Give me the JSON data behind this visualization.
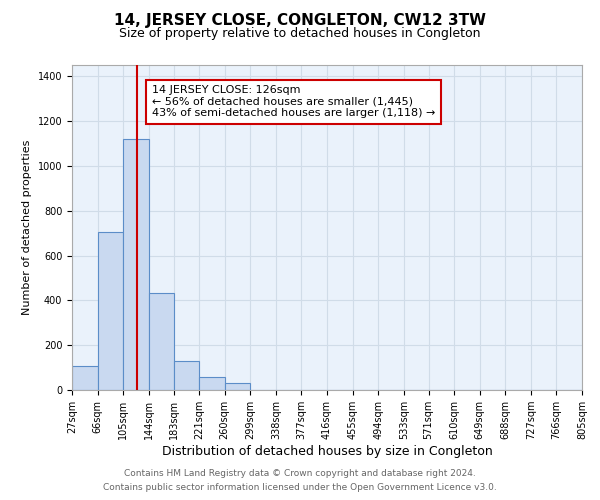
{
  "title": "14, JERSEY CLOSE, CONGLETON, CW12 3TW",
  "subtitle": "Size of property relative to detached houses in Congleton",
  "xlabel": "Distribution of detached houses by size in Congleton",
  "ylabel": "Number of detached properties",
  "bar_edges": [
    27,
    66,
    105,
    144,
    183,
    221,
    260,
    299,
    338,
    377,
    416,
    455,
    494,
    533,
    571,
    610,
    649,
    688,
    727,
    766,
    805
  ],
  "bar_heights": [
    107,
    703,
    1119,
    432,
    130,
    57,
    32,
    0,
    0,
    0,
    0,
    0,
    0,
    0,
    0,
    0,
    0,
    0,
    0,
    0
  ],
  "bar_color": "#c9d9f0",
  "bar_edge_color": "#5b8dc8",
  "property_line_x": 126,
  "property_line_color": "#cc0000",
  "annotation_text": "14 JERSEY CLOSE: 126sqm\n← 56% of detached houses are smaller (1,445)\n43% of semi-detached houses are larger (1,118) →",
  "annotation_box_color": "#ffffff",
  "annotation_box_edge_color": "#cc0000",
  "ylim": [
    0,
    1450
  ],
  "yticks": [
    0,
    200,
    400,
    600,
    800,
    1000,
    1200,
    1400
  ],
  "grid_color": "#d0dce8",
  "background_color": "#eaf2fb",
  "footer_line1": "Contains HM Land Registry data © Crown copyright and database right 2024.",
  "footer_line2": "Contains public sector information licensed under the Open Government Licence v3.0.",
  "title_fontsize": 11,
  "subtitle_fontsize": 9,
  "xlabel_fontsize": 9,
  "ylabel_fontsize": 8,
  "tick_fontsize": 7,
  "annotation_fontsize": 8,
  "footer_fontsize": 6.5
}
